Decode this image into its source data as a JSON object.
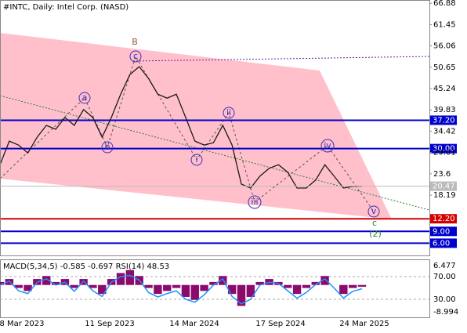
{
  "header": {
    "title": "#INTC, Daily:  Intel Corp. (NASD)"
  },
  "chart_data": {
    "type": "line",
    "color": "#1a1a1a",
    "ylim": [
      2.9,
      67.7
    ],
    "yticks": [
      66.88,
      61.45,
      56.06,
      50.65,
      45.24,
      39.83,
      34.42,
      29.01,
      23.6,
      18.19
    ],
    "levels": [
      {
        "value": 37.2,
        "label": "37.20",
        "color": "#0000cd"
      },
      {
        "value": 30,
        "label": "30.00",
        "color": "#0000cd"
      },
      {
        "value": 12.2,
        "label": "12.20",
        "color": "#d40000"
      },
      {
        "value": 9,
        "label": "9.00",
        "color": "#0000cd"
      },
      {
        "value": 6,
        "label": "6.00",
        "color": "#0000cd"
      }
    ],
    "last": 20.47,
    "x_labels": [
      "8 Mar 2023",
      "11 Sep 2023",
      "14 Mar 2024",
      "17 Sep 2024",
      "24 Mar 2025"
    ],
    "values": [
      25.9,
      31.9,
      30.9,
      28.9,
      32.9,
      35.9,
      34.9,
      37.9,
      35.9,
      39.9,
      37.9,
      32.9,
      37.9,
      43.8,
      48.8,
      50.8,
      47.8,
      43.8,
      42.8,
      43.8,
      37.9,
      31.9,
      30.9,
      31.5,
      35.9,
      30.9,
      21.0,
      20.0,
      23.0,
      25.0,
      25.9,
      24.0,
      20.0,
      20.0,
      22.0,
      25.9,
      23.0,
      20.0,
      20.4,
      20.47
    ],
    "waves": [
      "B",
      "c",
      "a",
      "b",
      "i",
      "ii",
      "iii",
      "iv",
      "v",
      "c",
      "(2)"
    ]
  },
  "indicator": {
    "label": "MACD(5,34,5) -0.585 -0.697 RSI(14) 48.53",
    "ylim": [
      -8.994,
      6.477
    ],
    "yticks": [
      6.477,
      -8.994
    ],
    "y2lim": [
      7.9,
      89.3
    ],
    "y2ticks": [
      {
        "value": 70,
        "label": "70.00"
      },
      {
        "value": 30,
        "label": "30.00"
      }
    ],
    "hist_color": "#8b0a6b",
    "line_color": "#1e90ff",
    "macd": [
      1,
      2,
      -1,
      -2,
      2,
      3,
      1,
      2,
      -1,
      2,
      -1,
      -3,
      2,
      4,
      5,
      3,
      -1,
      -3,
      -2,
      -1,
      -4,
      -5,
      -2,
      1,
      3,
      -3,
      -7,
      -4,
      1,
      2,
      1,
      -1,
      -3,
      -1,
      1,
      3,
      0,
      -3,
      -1,
      -0.585
    ],
    "rsi": [
      55,
      62,
      45,
      40,
      60,
      66,
      55,
      60,
      44,
      62,
      45,
      35,
      60,
      70,
      72,
      64,
      42,
      34,
      40,
      45,
      30,
      25,
      38,
      55,
      66,
      35,
      22,
      30,
      55,
      60,
      58,
      45,
      32,
      42,
      56,
      66,
      50,
      32,
      44,
      48.53
    ]
  }
}
